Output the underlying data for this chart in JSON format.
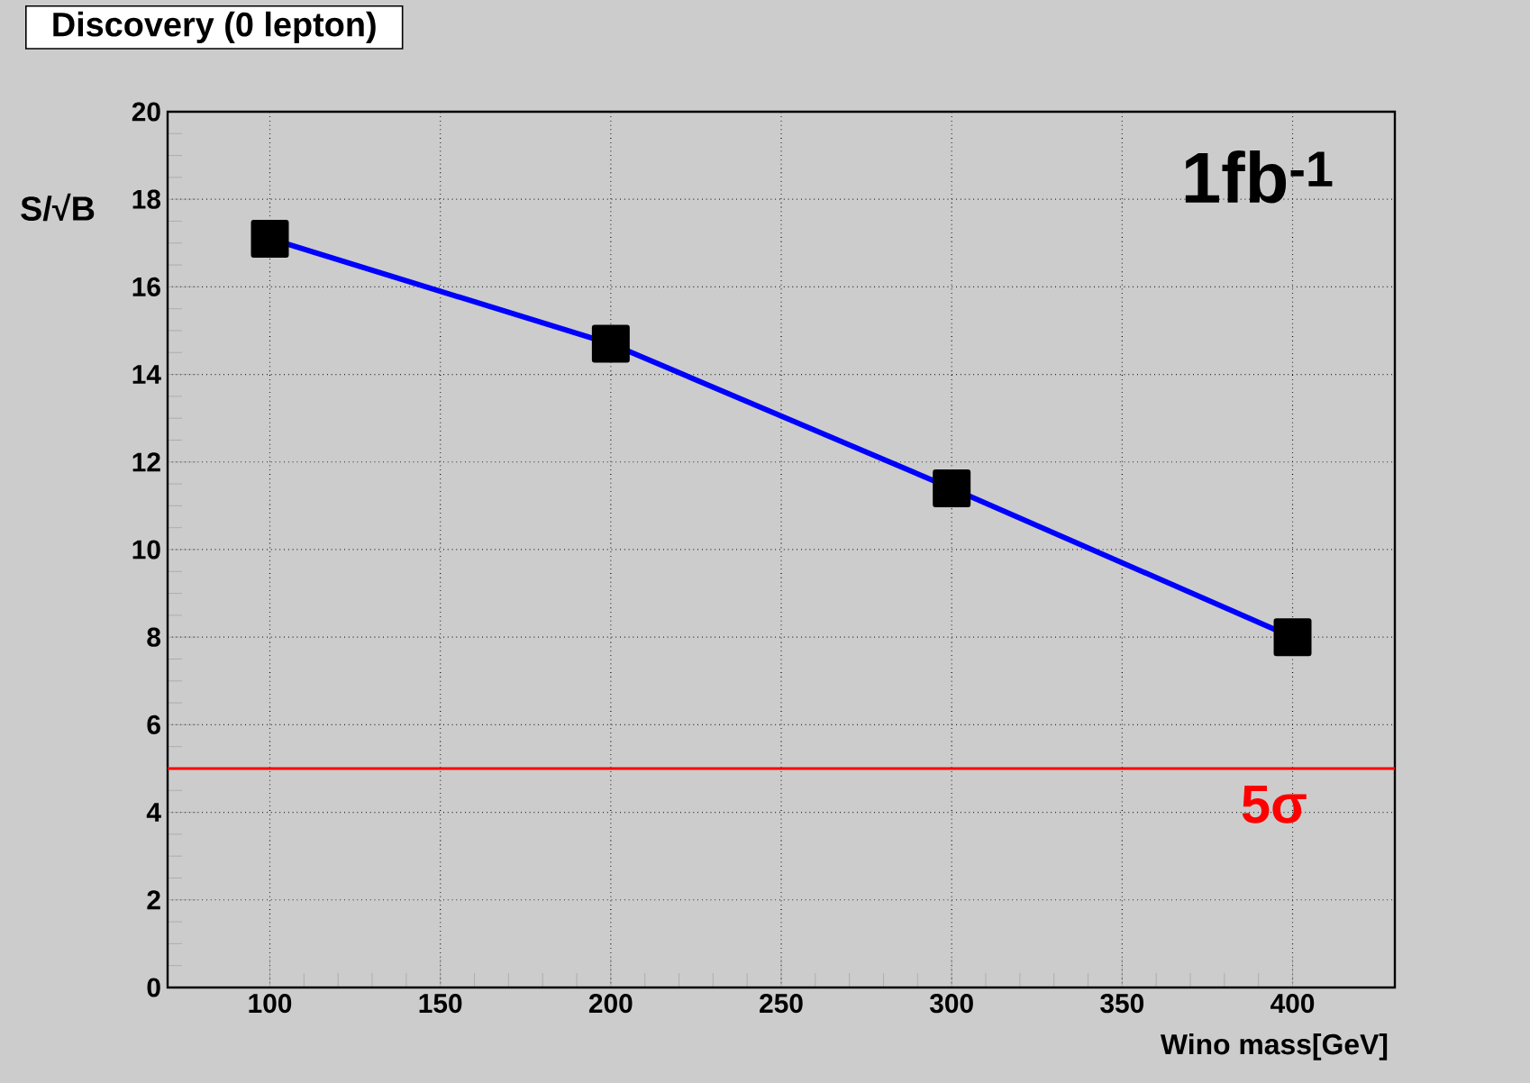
{
  "chart_data": {
    "type": "line",
    "title": "Discovery (0 lepton)",
    "xlabel": "Wino mass[GeV]",
    "ylabel": "S/√B",
    "x": [
      100,
      200,
      300,
      400
    ],
    "series": [
      {
        "color": "#0000ff",
        "values": [
          17.1,
          14.7,
          11.4,
          8.0
        ]
      }
    ],
    "marker": "square",
    "line_style": "solid",
    "grid": true,
    "xlim": [
      70,
      430
    ],
    "ylim": [
      0,
      20
    ],
    "xticks": [
      100,
      150,
      200,
      250,
      300,
      350,
      400
    ],
    "yticks": [
      0,
      2,
      4,
      6,
      8,
      10,
      12,
      14,
      16,
      18,
      20
    ],
    "ref_lines": [
      {
        "axis": "y",
        "value": 5,
        "label": "5σ",
        "color": "#ff0000"
      }
    ],
    "annotations": [
      {
        "text": "1fb$^{-1}$"
      }
    ]
  }
}
